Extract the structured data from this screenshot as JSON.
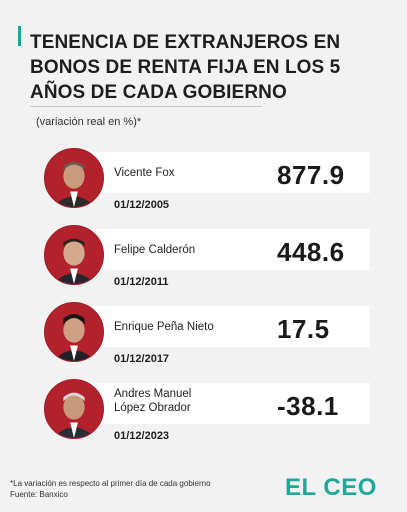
{
  "title": "TENENCIA DE EXTRANJEROS EN BONOS DE RENTA FIJA EN LOS 5 AÑOS DE CADA GOBIERNO",
  "subtitle": "(variación real en %)*",
  "colors": {
    "accent": "#1fa89a",
    "avatar_bg": "#b3212d"
  },
  "chart_data": {
    "type": "table",
    "title": "TENENCIA DE EXTRANJEROS EN BONOS DE RENTA FIJA EN LOS 5 AÑOS DE CADA GOBIERNO",
    "subtitle": "(variación real en %)*",
    "rows": [
      {
        "name": "Vicente Fox",
        "date": "01/12/2005",
        "value": 877.9,
        "value_label": "877.9"
      },
      {
        "name": "Felipe Calderón",
        "date": "01/12/2011",
        "value": 448.6,
        "value_label": "448.6"
      },
      {
        "name": "Enrique Peña Nieto",
        "date": "01/12/2017",
        "value": 17.5,
        "value_label": "17.5"
      },
      {
        "name_line1": "Andres Manuel",
        "name_line2": "López Obrador",
        "date": "01/12/2023",
        "value": -38.1,
        "value_label": "-38.1"
      }
    ]
  },
  "footnote": {
    "line1": "*La variación es respecto al primer día de cada gobierno",
    "line2": "Fuente: Banxico"
  },
  "logo": "EL CEO"
}
